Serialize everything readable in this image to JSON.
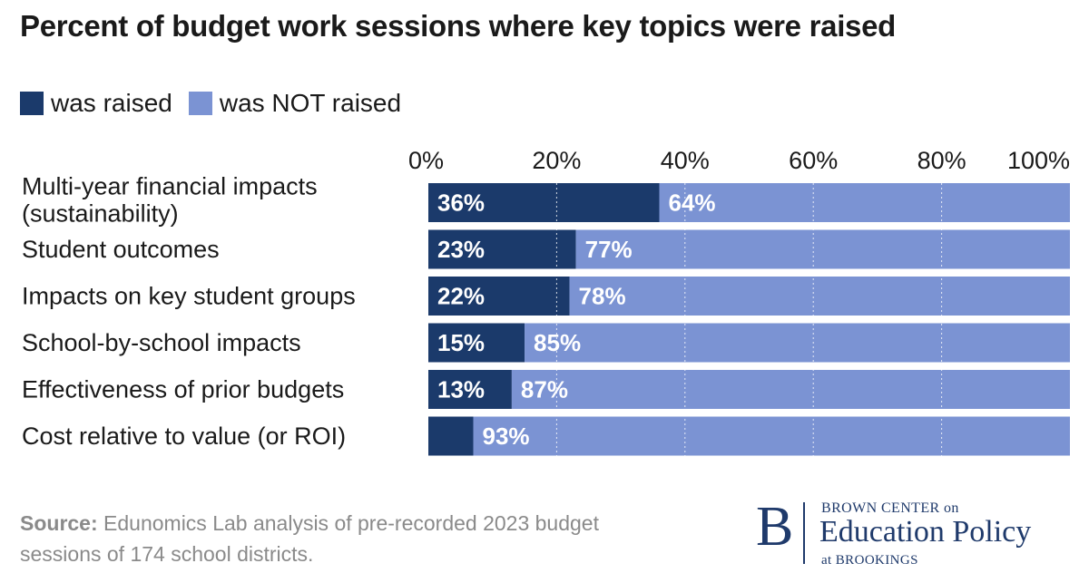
{
  "title": "Percent of budget work sessions where key topics were raised",
  "legend": {
    "raised_label": "was raised",
    "not_raised_label": "was NOT raised"
  },
  "colors": {
    "raised": "#1b3a6b",
    "not_raised": "#7b93d3",
    "gridline": "#ffffff",
    "text": "#1a1a1a"
  },
  "chart_data": {
    "type": "bar",
    "orientation": "horizontal",
    "stacked": true,
    "categories": [
      [
        "Multi-year financial impacts",
        "(sustainability)"
      ],
      [
        "Student outcomes"
      ],
      [
        "Impacts on key student groups"
      ],
      [
        "School-by-school impacts"
      ],
      [
        "Effectiveness of prior budgets"
      ],
      [
        "Cost relative to value (or ROI)"
      ]
    ],
    "series": [
      {
        "name": "was raised",
        "values": [
          36,
          23,
          22,
          15,
          13,
          7
        ],
        "labels": [
          "36%",
          "23%",
          "22%",
          "15%",
          "13%",
          ""
        ]
      },
      {
        "name": "was NOT raised",
        "values": [
          64,
          77,
          78,
          85,
          87,
          93
        ],
        "labels": [
          "64%",
          "77%",
          "78%",
          "85%",
          "87%",
          "93%"
        ]
      }
    ],
    "x_ticks": [
      "0%",
      "20%",
      "40%",
      "60%",
      "80%",
      "100%"
    ],
    "xlim": [
      0,
      100
    ],
    "grid": true,
    "legend_position": "top-left"
  },
  "footer": {
    "source_label": "Source:",
    "source_text": " Edunomics Lab analysis of pre-recorded 2023 budget sessions of 174 school districts."
  },
  "logo": {
    "mark": "B",
    "line1": "BROWN CENTER on",
    "line2": "Education Policy",
    "line3": "at BROOKINGS"
  }
}
